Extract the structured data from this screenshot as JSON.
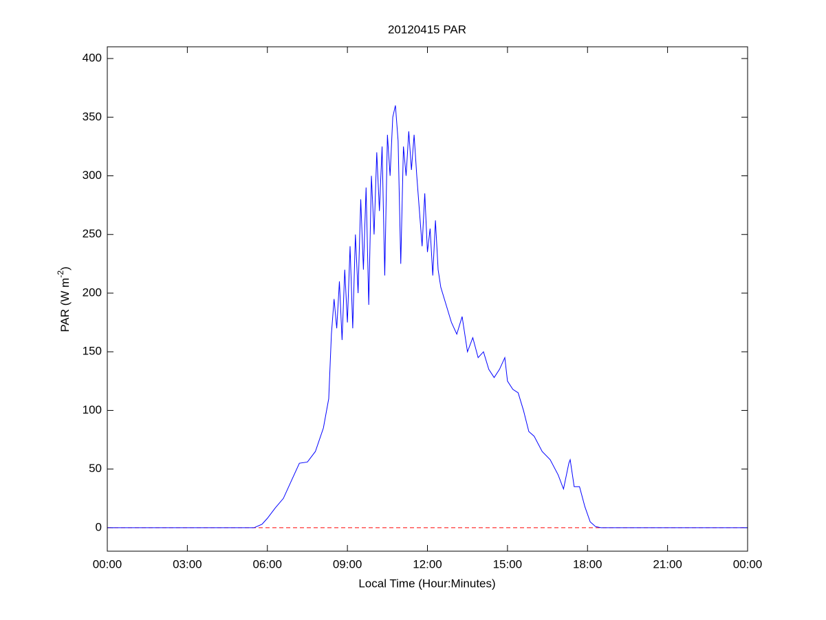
{
  "chart_data": {
    "type": "line",
    "title": "20120415 PAR",
    "xlabel": "Local Time (Hour:Minutes)",
    "ylabel": {
      "text": "PAR (W m",
      "superscript": "-2",
      "suffix": ")"
    },
    "x": [
      0,
      5.5,
      5.8,
      6.0,
      6.3,
      6.6,
      6.9,
      7.2,
      7.5,
      7.8,
      8.1,
      8.3,
      8.4,
      8.5,
      8.6,
      8.7,
      8.8,
      8.9,
      9.0,
      9.1,
      9.2,
      9.3,
      9.4,
      9.5,
      9.6,
      9.7,
      9.8,
      9.9,
      10.0,
      10.1,
      10.2,
      10.3,
      10.4,
      10.5,
      10.6,
      10.7,
      10.8,
      10.9,
      11.0,
      11.1,
      11.2,
      11.3,
      11.4,
      11.5,
      11.6,
      11.7,
      11.8,
      11.9,
      12.0,
      12.1,
      12.2,
      12.3,
      12.4,
      12.5,
      12.7,
      12.9,
      13.1,
      13.3,
      13.5,
      13.7,
      13.9,
      14.1,
      14.3,
      14.5,
      14.7,
      14.9,
      15.0,
      15.2,
      15.4,
      15.6,
      15.8,
      16.0,
      16.3,
      16.6,
      16.9,
      17.1,
      17.3,
      17.35,
      17.5,
      17.7,
      17.9,
      18.1,
      18.3,
      18.5,
      24
    ],
    "series": [
      {
        "name": "PAR",
        "color": "#0000ff",
        "values": [
          0,
          0,
          3,
          8,
          17,
          25,
          40,
          55,
          56,
          65,
          85,
          110,
          165,
          195,
          170,
          210,
          160,
          220,
          175,
          240,
          170,
          250,
          200,
          280,
          220,
          290,
          190,
          300,
          250,
          320,
          270,
          325,
          215,
          335,
          300,
          350,
          360,
          330,
          225,
          325,
          300,
          338,
          305,
          335,
          300,
          270,
          240,
          285,
          235,
          255,
          215,
          262,
          220,
          205,
          190,
          175,
          165,
          180,
          150,
          162,
          145,
          150,
          135,
          128,
          135,
          145,
          125,
          118,
          115,
          100,
          82,
          78,
          65,
          58,
          45,
          33,
          55,
          58,
          35,
          35,
          18,
          5,
          1,
          0,
          0
        ]
      }
    ],
    "reference_line": {
      "value": 0,
      "color": "#ff0000"
    },
    "xlim": [
      0,
      24
    ],
    "xticks": [
      {
        "value": 0,
        "label": "00:00"
      },
      {
        "value": 3,
        "label": "03:00"
      },
      {
        "value": 6,
        "label": "06:00"
      },
      {
        "value": 9,
        "label": "09:00"
      },
      {
        "value": 12,
        "label": "12:00"
      },
      {
        "value": 15,
        "label": "15:00"
      },
      {
        "value": 18,
        "label": "18:00"
      },
      {
        "value": 21,
        "label": "21:00"
      },
      {
        "value": 24,
        "label": "00:00"
      }
    ],
    "ylim": [
      -20,
      410
    ],
    "yticks": [
      0,
      50,
      100,
      150,
      200,
      250,
      300,
      350,
      400
    ],
    "grid": false
  }
}
